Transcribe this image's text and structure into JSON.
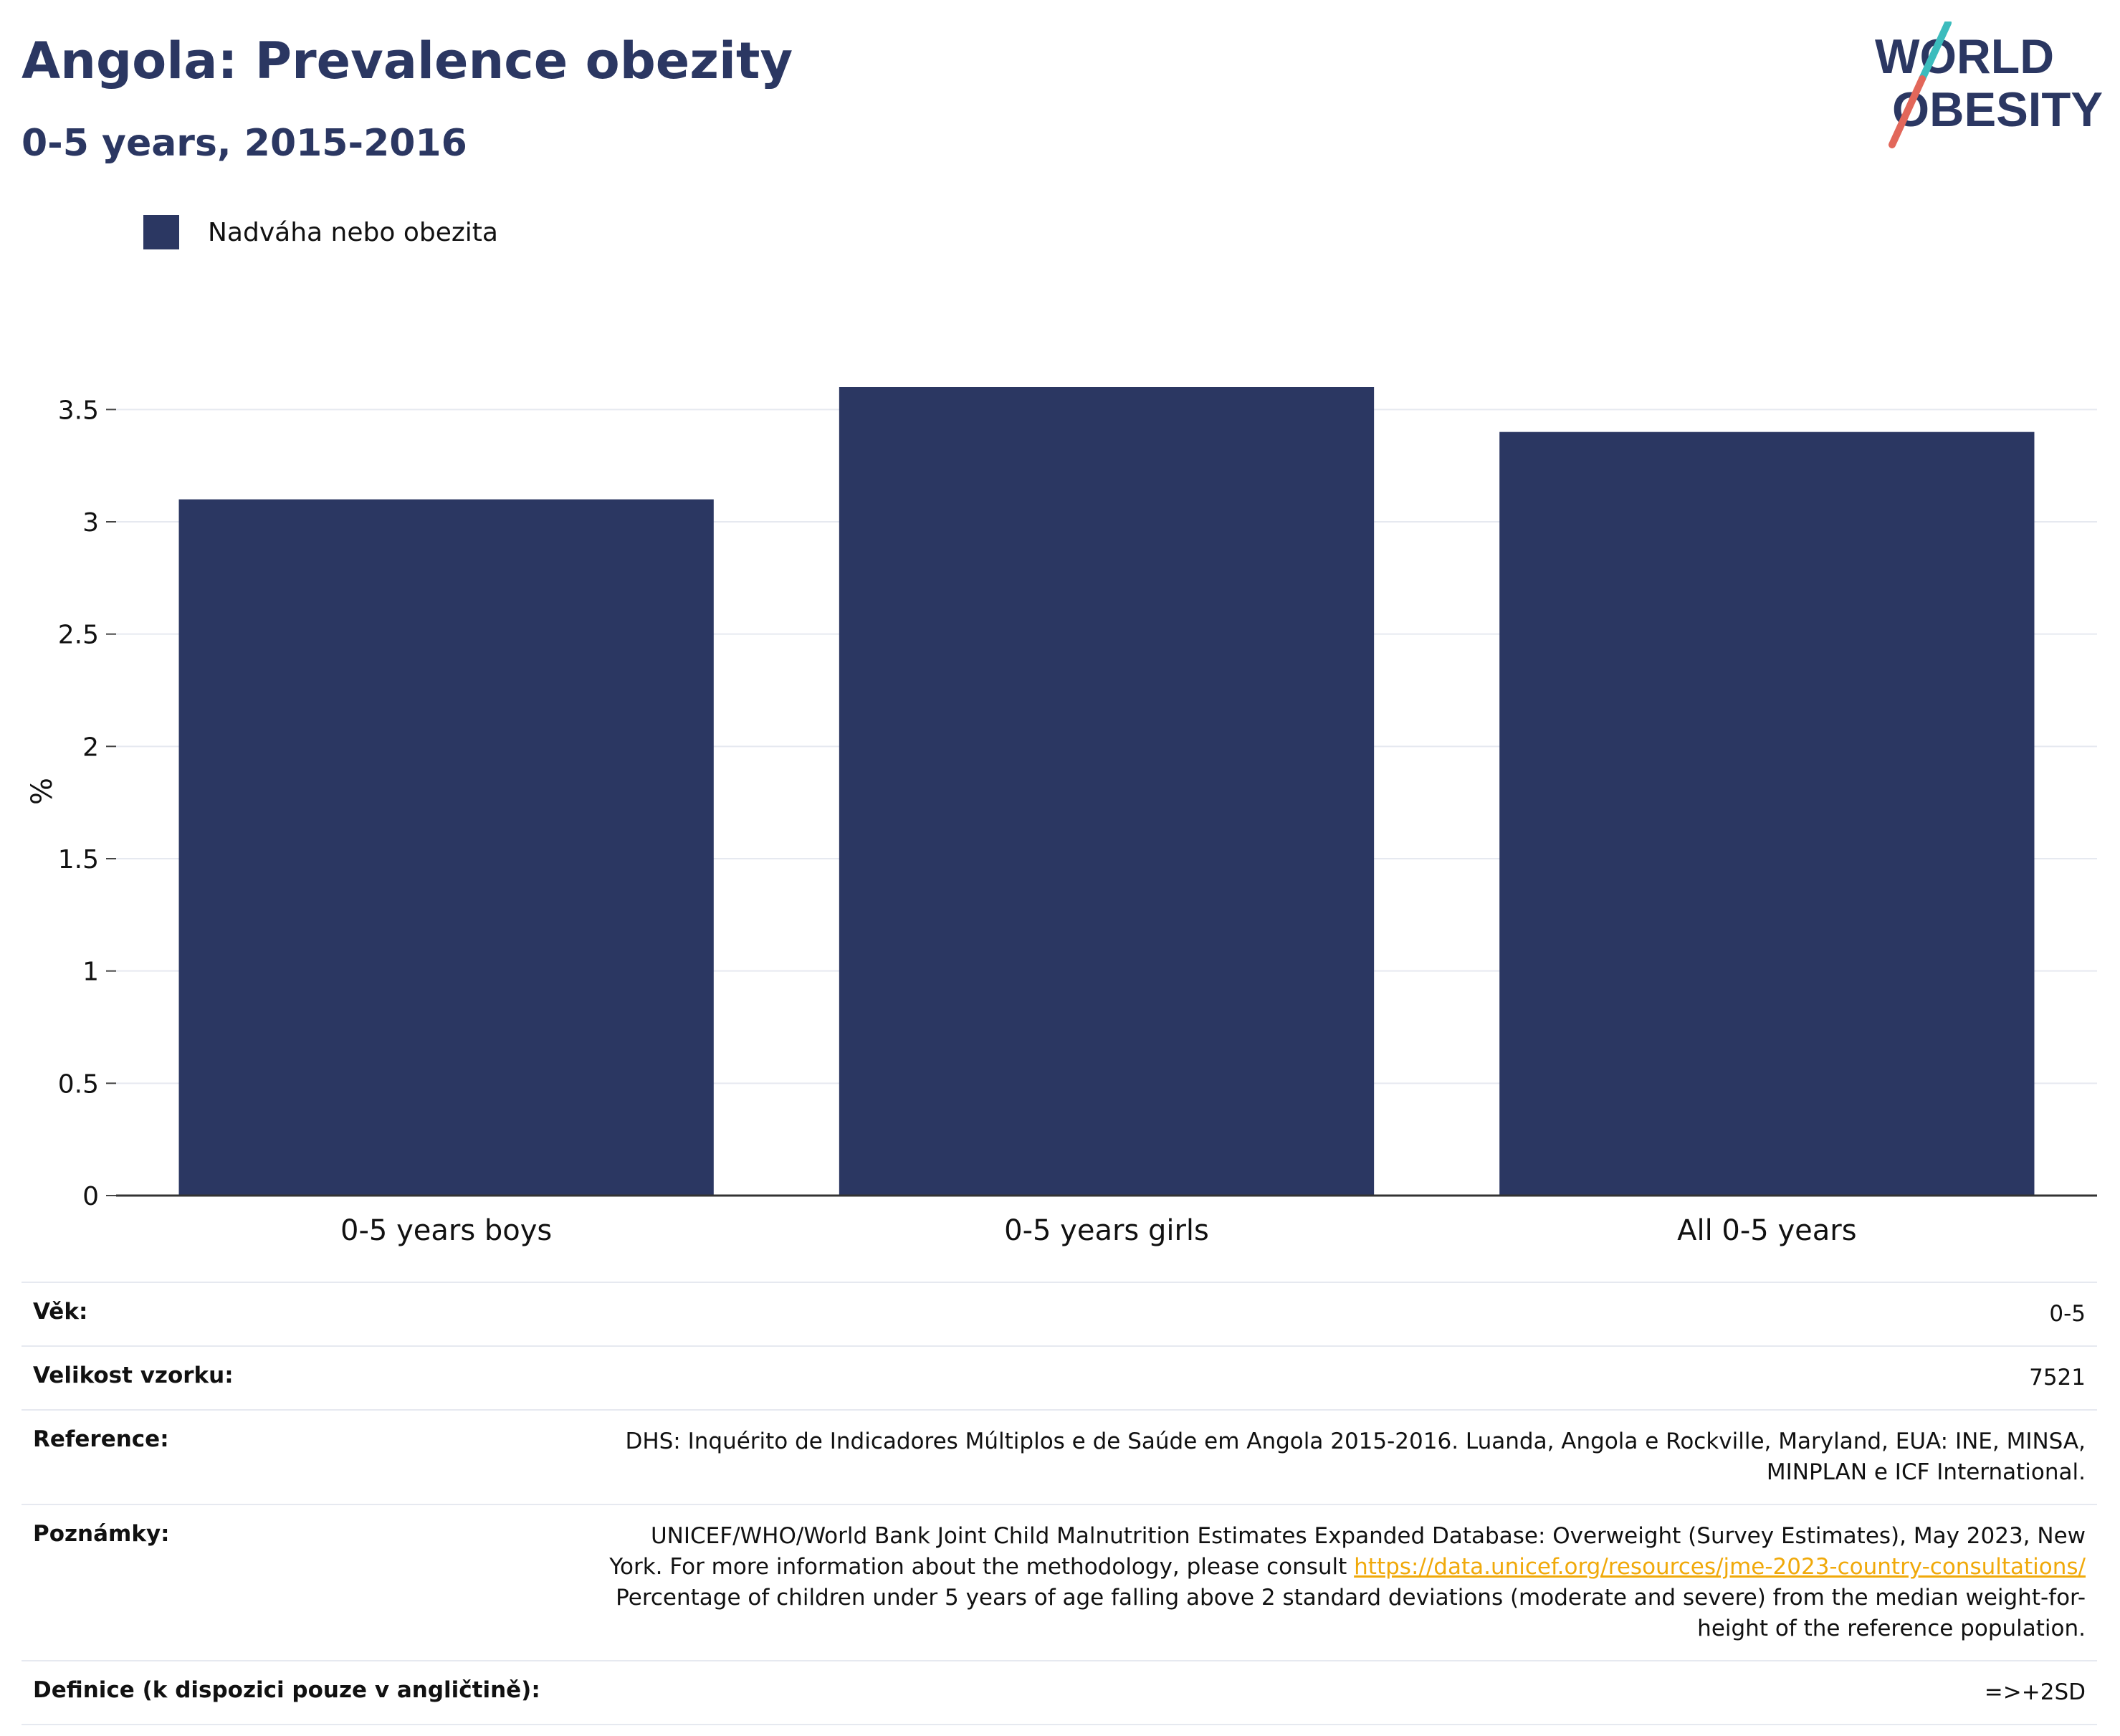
{
  "header": {
    "title": "Angola: Prevalence obezity",
    "subtitle": "0-5 years, 2015-2016"
  },
  "logo": {
    "line1": "WORLD",
    "line2": "OBESITY"
  },
  "colors": {
    "bar": "#2b3762",
    "text": "#111111",
    "grid": "#e6e9f0",
    "link": "#f0a90a",
    "logo_red": "#e2675a",
    "logo_teal": "#3cbcbd"
  },
  "chart_data": {
    "type": "bar",
    "categories": [
      "0-5 years boys",
      "0-5 years girls",
      "All 0-5 years"
    ],
    "series": [
      {
        "name": "Nadváha nebo obezita",
        "values": [
          3.1,
          3.6,
          3.4
        ]
      }
    ],
    "ylabel": "%",
    "ylim": [
      0,
      3.6
    ],
    "yticks": [
      0,
      0.5,
      1,
      1.5,
      2,
      2.5,
      3,
      3.5
    ],
    "ytick_labels": [
      "0",
      "0.5",
      "1",
      "1.5",
      "2",
      "2.5",
      "3",
      "3.5"
    ],
    "grid": true,
    "legend_position": "top-left"
  },
  "info": {
    "rows": [
      {
        "label": "Věk:",
        "value": "0-5"
      },
      {
        "label": "Velikost vzorku:",
        "value": "7521"
      },
      {
        "label": "Reference:",
        "value": "DHS: Inquérito de Indicadores Múltiplos e de Saúde em Angola 2015-2016. Luanda, Angola e Rockville, Maryland, EUA: INE, MINSA, MINPLAN e ICF International."
      },
      {
        "label": "Poznámky:",
        "value_before": "UNICEF/WHO/World Bank Joint Child Malnutrition Estimates Expanded Database: Overweight (Survey Estimates), May 2023, New York. For more information about the methodology, please consult ",
        "link": "https://data.unicef.org/resources/jme-2023-country-consultations/",
        "value_after": " Percentage of children under 5 years of age falling above 2 standard deviations (moderate and severe) from the median weight-for-height of the reference population."
      },
      {
        "label": "Definice (k dispozici pouze v angličtině):",
        "value": "=>+2SD"
      }
    ]
  }
}
